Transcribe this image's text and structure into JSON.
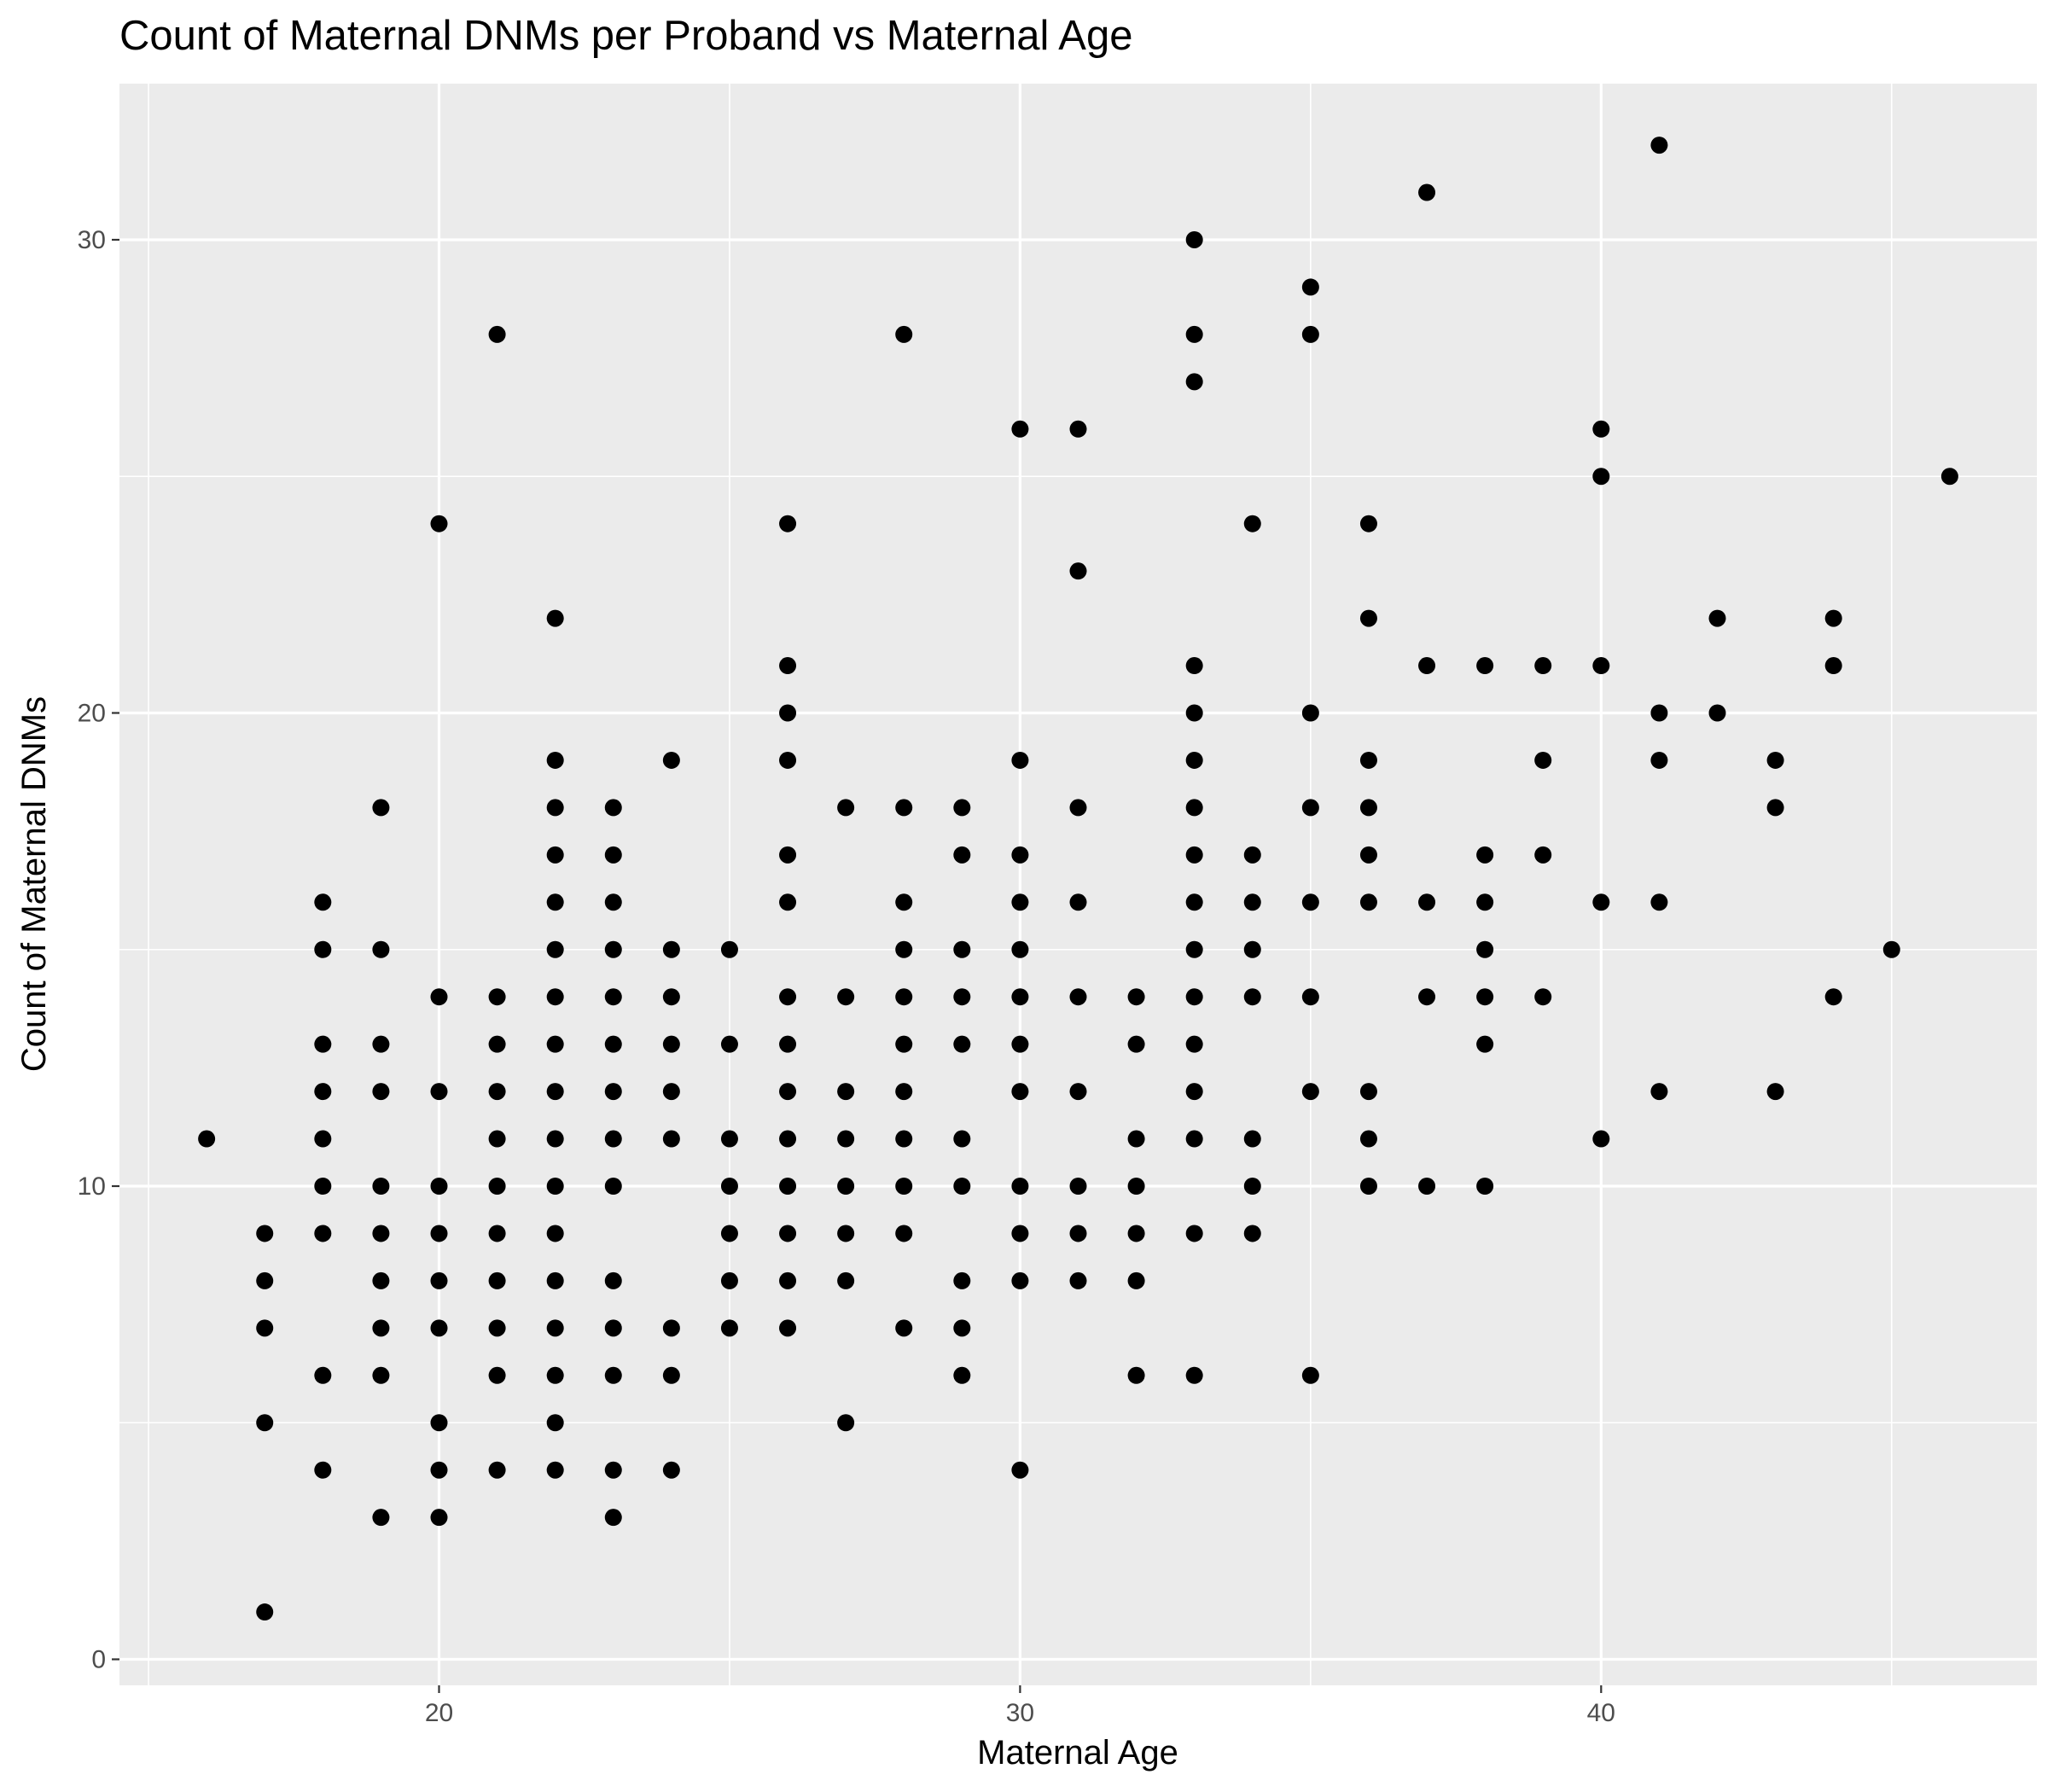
{
  "chart_data": {
    "type": "scatter",
    "title": "Count of Maternal DNMs per Proband vs Maternal Age",
    "xlabel": "Maternal Age",
    "ylabel": "Count of Maternal DNMs",
    "xlim": [
      14.5,
      47.5
    ],
    "ylim": [
      -0.55,
      33.3
    ],
    "x_ticks": [
      20,
      30,
      40
    ],
    "y_ticks": [
      0,
      10,
      20,
      30
    ],
    "x_tick_labels": [
      "20",
      "30",
      "40"
    ],
    "y_tick_labels": [
      "0",
      "10",
      "20",
      "30"
    ],
    "grid": true,
    "legend": "none",
    "point_color": "#000000",
    "panel_background": "#ebebeb",
    "points": [
      [
        16,
        11
      ],
      [
        17,
        9
      ],
      [
        17,
        8
      ],
      [
        17,
        7
      ],
      [
        17,
        5
      ],
      [
        17,
        1
      ],
      [
        18,
        16
      ],
      [
        18,
        15
      ],
      [
        18,
        13
      ],
      [
        18,
        12
      ],
      [
        18,
        11
      ],
      [
        18,
        10
      ],
      [
        18,
        9
      ],
      [
        18,
        6
      ],
      [
        18,
        4
      ],
      [
        19,
        18
      ],
      [
        19,
        15
      ],
      [
        19,
        13
      ],
      [
        19,
        12
      ],
      [
        19,
        10
      ],
      [
        19,
        9
      ],
      [
        19,
        8
      ],
      [
        19,
        7
      ],
      [
        19,
        6
      ],
      [
        19,
        3
      ],
      [
        20,
        24
      ],
      [
        20,
        14
      ],
      [
        20,
        12
      ],
      [
        20,
        10
      ],
      [
        20,
        9
      ],
      [
        20,
        8
      ],
      [
        20,
        7
      ],
      [
        20,
        5
      ],
      [
        20,
        4
      ],
      [
        20,
        3
      ],
      [
        21,
        28
      ],
      [
        21,
        14
      ],
      [
        21,
        13
      ],
      [
        21,
        12
      ],
      [
        21,
        11
      ],
      [
        21,
        10
      ],
      [
        21,
        9
      ],
      [
        21,
        8
      ],
      [
        21,
        7
      ],
      [
        21,
        6
      ],
      [
        21,
        4
      ],
      [
        22,
        22
      ],
      [
        22,
        19
      ],
      [
        22,
        18
      ],
      [
        22,
        17
      ],
      [
        22,
        16
      ],
      [
        22,
        15
      ],
      [
        22,
        14
      ],
      [
        22,
        13
      ],
      [
        22,
        12
      ],
      [
        22,
        11
      ],
      [
        22,
        10
      ],
      [
        22,
        9
      ],
      [
        22,
        8
      ],
      [
        22,
        7
      ],
      [
        22,
        6
      ],
      [
        22,
        5
      ],
      [
        22,
        4
      ],
      [
        23,
        18
      ],
      [
        23,
        17
      ],
      [
        23,
        16
      ],
      [
        23,
        15
      ],
      [
        23,
        14
      ],
      [
        23,
        13
      ],
      [
        23,
        12
      ],
      [
        23,
        11
      ],
      [
        23,
        10
      ],
      [
        23,
        8
      ],
      [
        23,
        7
      ],
      [
        23,
        6
      ],
      [
        23,
        4
      ],
      [
        23,
        3
      ],
      [
        24,
        19
      ],
      [
        24,
        15
      ],
      [
        24,
        14
      ],
      [
        24,
        13
      ],
      [
        24,
        12
      ],
      [
        24,
        11
      ],
      [
        24,
        7
      ],
      [
        24,
        6
      ],
      [
        24,
        4
      ],
      [
        25,
        15
      ],
      [
        25,
        13
      ],
      [
        25,
        11
      ],
      [
        25,
        10
      ],
      [
        25,
        9
      ],
      [
        25,
        8
      ],
      [
        25,
        7
      ],
      [
        26,
        24
      ],
      [
        26,
        21
      ],
      [
        26,
        20
      ],
      [
        26,
        19
      ],
      [
        26,
        17
      ],
      [
        26,
        16
      ],
      [
        26,
        14
      ],
      [
        26,
        13
      ],
      [
        26,
        12
      ],
      [
        26,
        11
      ],
      [
        26,
        10
      ],
      [
        26,
        9
      ],
      [
        26,
        8
      ],
      [
        26,
        7
      ],
      [
        27,
        18
      ],
      [
        27,
        14
      ],
      [
        27,
        12
      ],
      [
        27,
        11
      ],
      [
        27,
        10
      ],
      [
        27,
        9
      ],
      [
        27,
        8
      ],
      [
        27,
        5
      ],
      [
        28,
        28
      ],
      [
        28,
        18
      ],
      [
        28,
        16
      ],
      [
        28,
        15
      ],
      [
        28,
        14
      ],
      [
        28,
        13
      ],
      [
        28,
        12
      ],
      [
        28,
        11
      ],
      [
        28,
        10
      ],
      [
        28,
        9
      ],
      [
        28,
        7
      ],
      [
        29,
        18
      ],
      [
        29,
        17
      ],
      [
        29,
        15
      ],
      [
        29,
        14
      ],
      [
        29,
        13
      ],
      [
        29,
        11
      ],
      [
        29,
        10
      ],
      [
        29,
        8
      ],
      [
        29,
        7
      ],
      [
        29,
        6
      ],
      [
        30,
        26
      ],
      [
        30,
        19
      ],
      [
        30,
        17
      ],
      [
        30,
        16
      ],
      [
        30,
        15
      ],
      [
        30,
        14
      ],
      [
        30,
        13
      ],
      [
        30,
        12
      ],
      [
        30,
        10
      ],
      [
        30,
        9
      ],
      [
        30,
        8
      ],
      [
        30,
        4
      ],
      [
        31,
        26
      ],
      [
        31,
        23
      ],
      [
        31,
        18
      ],
      [
        31,
        16
      ],
      [
        31,
        14
      ],
      [
        31,
        12
      ],
      [
        31,
        10
      ],
      [
        31,
        9
      ],
      [
        31,
        8
      ],
      [
        32,
        14
      ],
      [
        32,
        13
      ],
      [
        32,
        11
      ],
      [
        32,
        10
      ],
      [
        32,
        9
      ],
      [
        32,
        8
      ],
      [
        32,
        6
      ],
      [
        33,
        30
      ],
      [
        33,
        28
      ],
      [
        33,
        27
      ],
      [
        33,
        21
      ],
      [
        33,
        20
      ],
      [
        33,
        19
      ],
      [
        33,
        18
      ],
      [
        33,
        17
      ],
      [
        33,
        16
      ],
      [
        33,
        15
      ],
      [
        33,
        14
      ],
      [
        33,
        13
      ],
      [
        33,
        12
      ],
      [
        33,
        11
      ],
      [
        33,
        9
      ],
      [
        33,
        6
      ],
      [
        34,
        24
      ],
      [
        34,
        17
      ],
      [
        34,
        16
      ],
      [
        34,
        15
      ],
      [
        34,
        14
      ],
      [
        34,
        11
      ],
      [
        34,
        10
      ],
      [
        34,
        9
      ],
      [
        35,
        29
      ],
      [
        35,
        28
      ],
      [
        35,
        20
      ],
      [
        35,
        18
      ],
      [
        35,
        16
      ],
      [
        35,
        14
      ],
      [
        35,
        12
      ],
      [
        35,
        6
      ],
      [
        36,
        24
      ],
      [
        36,
        22
      ],
      [
        36,
        19
      ],
      [
        36,
        18
      ],
      [
        36,
        17
      ],
      [
        36,
        16
      ],
      [
        36,
        12
      ],
      [
        36,
        11
      ],
      [
        36,
        10
      ],
      [
        37,
        31
      ],
      [
        37,
        21
      ],
      [
        37,
        16
      ],
      [
        37,
        14
      ],
      [
        37,
        10
      ],
      [
        38,
        21
      ],
      [
        38,
        17
      ],
      [
        38,
        16
      ],
      [
        38,
        15
      ],
      [
        38,
        14
      ],
      [
        38,
        13
      ],
      [
        38,
        10
      ],
      [
        39,
        21
      ],
      [
        39,
        19
      ],
      [
        39,
        17
      ],
      [
        39,
        14
      ],
      [
        40,
        26
      ],
      [
        40,
        25
      ],
      [
        40,
        21
      ],
      [
        40,
        16
      ],
      [
        40,
        11
      ],
      [
        41,
        32
      ],
      [
        41,
        20
      ],
      [
        41,
        19
      ],
      [
        41,
        16
      ],
      [
        41,
        12
      ],
      [
        42,
        22
      ],
      [
        42,
        20
      ],
      [
        43,
        19
      ],
      [
        43,
        18
      ],
      [
        43,
        12
      ],
      [
        44,
        22
      ],
      [
        44,
        21
      ],
      [
        44,
        14
      ],
      [
        45,
        15
      ],
      [
        46,
        25
      ]
    ]
  }
}
